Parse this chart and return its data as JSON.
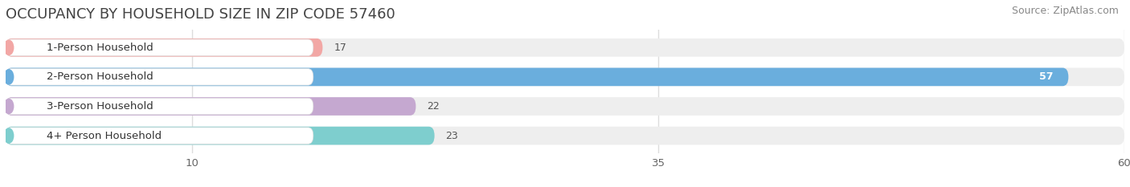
{
  "title": "OCCUPANCY BY HOUSEHOLD SIZE IN ZIP CODE 57460",
  "source": "Source: ZipAtlas.com",
  "categories": [
    "1-Person Household",
    "2-Person Household",
    "3-Person Household",
    "4+ Person Household"
  ],
  "values": [
    17,
    57,
    22,
    23
  ],
  "bar_colors": [
    "#f2a7a5",
    "#6aaedd",
    "#c5a8d0",
    "#7ecece"
  ],
  "xlim_min": 0,
  "xlim_max": 60,
  "xticks": [
    10,
    35,
    60
  ],
  "bg_color": "#ffffff",
  "bar_bg_color": "#eeeeee",
  "title_fontsize": 13,
  "source_fontsize": 9,
  "label_fontsize": 9.5,
  "value_fontsize": 9
}
